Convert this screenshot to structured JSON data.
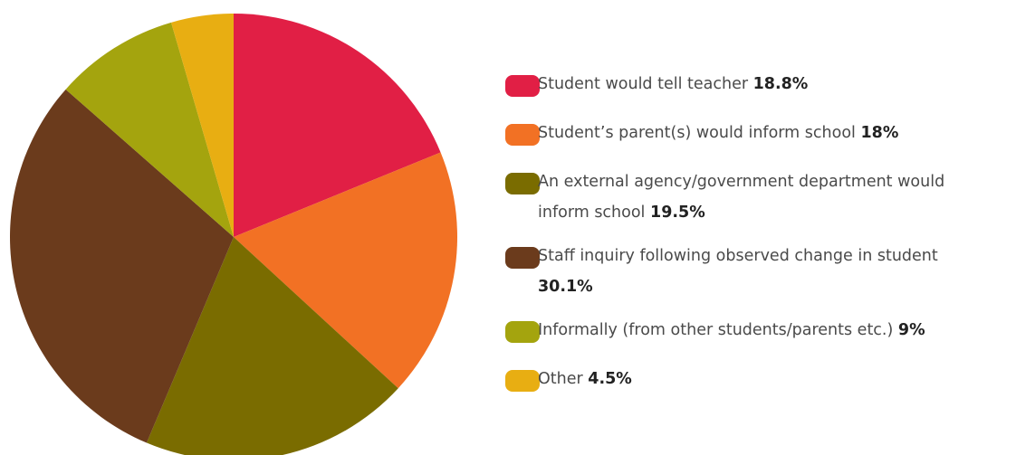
{
  "chart_data": {
    "type": "pie",
    "start_angle_deg": 0,
    "direction": "clockwise",
    "slices": [
      {
        "label": "Student would tell teacher",
        "value_label": "18.8%",
        "value": 18.8,
        "color": "#e11f45"
      },
      {
        "label": "Student’s parent(s) would inform school",
        "value_label": "18%",
        "value": 18.0,
        "color": "#f27124"
      },
      {
        "label": "An external agency/government department would inform school",
        "value_label": "19.5%",
        "value": 19.5,
        "color": "#7a6c00"
      },
      {
        "label": "Staff inquiry following observed change in student",
        "value_label": "30.1%",
        "value": 30.1,
        "color": "#6b3b1c"
      },
      {
        "label": "Informally (from other students/parents etc.)",
        "value_label": "9%",
        "value": 9.0,
        "color": "#a4a40e"
      },
      {
        "label": "Other",
        "value_label": "4.5%",
        "value": 4.5,
        "color": "#e8ae12"
      }
    ]
  }
}
